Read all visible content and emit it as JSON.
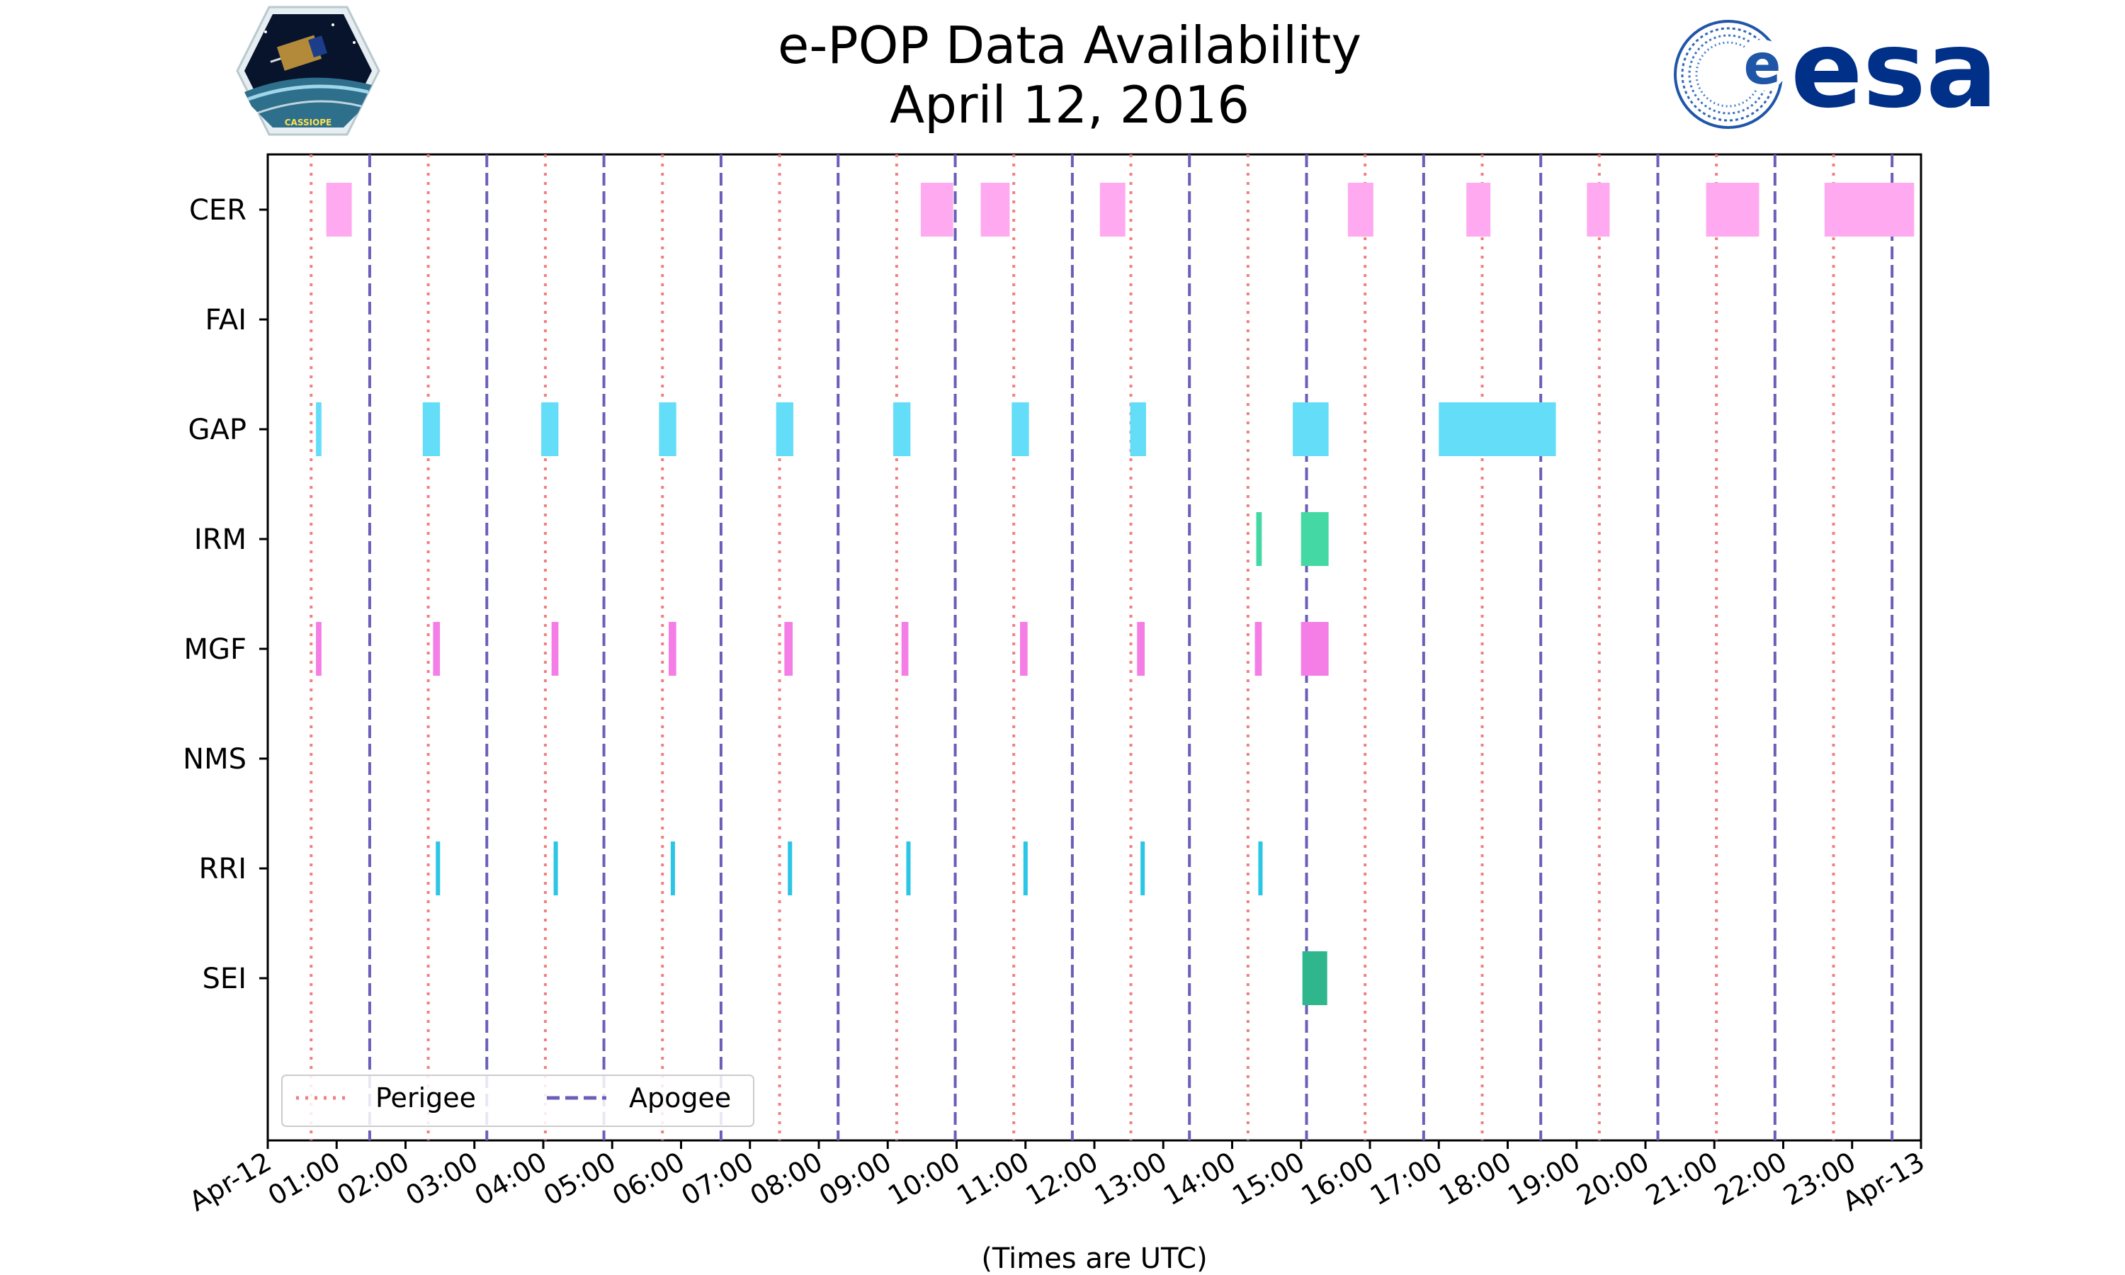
{
  "chart_data": {
    "type": "timeline",
    "title": "e-POP Data Availability",
    "subtitle": "April 12, 2016",
    "xlabel": "(Times are UTC)",
    "ylabel": "",
    "xlim_hours": [
      0,
      24
    ],
    "x_tick_labels": [
      "Apr-12",
      "01:00",
      "02:00",
      "03:00",
      "04:00",
      "05:00",
      "06:00",
      "07:00",
      "08:00",
      "09:00",
      "10:00",
      "11:00",
      "12:00",
      "13:00",
      "14:00",
      "15:00",
      "16:00",
      "17:00",
      "18:00",
      "19:00",
      "20:00",
      "21:00",
      "22:00",
      "23:00",
      "Apr-13"
    ],
    "instruments": [
      "CER",
      "FAI",
      "GAP",
      "IRM",
      "MGF",
      "NMS",
      "RRI",
      "SEI"
    ],
    "instrument_colors": {
      "CER": "#ffaaf0",
      "FAI": "#cccccc",
      "GAP": "#64ddf8",
      "IRM": "#44d8a4",
      "MGF": "#f57ee6",
      "NMS": "#cccccc",
      "RRI": "#2bc5e5",
      "SEI": "#2fb68c"
    },
    "intervals": {
      "CER": [
        [
          0.85,
          1.22
        ],
        [
          9.48,
          9.95
        ],
        [
          10.35,
          10.77
        ],
        [
          12.08,
          12.45
        ],
        [
          15.68,
          16.05
        ],
        [
          17.4,
          17.75
        ],
        [
          19.15,
          19.48
        ],
        [
          20.88,
          21.65
        ],
        [
          22.6,
          23.9
        ]
      ],
      "FAI": [],
      "GAP": [
        [
          0.7,
          0.78
        ],
        [
          2.25,
          2.5
        ],
        [
          3.97,
          4.22
        ],
        [
          5.68,
          5.93
        ],
        [
          7.38,
          7.63
        ],
        [
          9.08,
          9.33
        ],
        [
          10.8,
          11.05
        ],
        [
          12.52,
          12.75
        ],
        [
          14.88,
          15.4
        ],
        [
          17.0,
          18.7
        ]
      ],
      "IRM": [
        [
          14.35,
          14.43
        ],
        [
          15.0,
          15.4
        ]
      ],
      "MGF": [
        [
          0.7,
          0.78
        ],
        [
          2.4,
          2.5
        ],
        [
          4.12,
          4.22
        ],
        [
          5.82,
          5.93
        ],
        [
          7.5,
          7.62
        ],
        [
          9.2,
          9.3
        ],
        [
          10.92,
          11.03
        ],
        [
          12.62,
          12.73
        ],
        [
          14.33,
          14.43
        ],
        [
          15.0,
          15.4
        ]
      ],
      "NMS": [],
      "RRI": [
        [
          2.44,
          2.5
        ],
        [
          4.15,
          4.21
        ],
        [
          5.85,
          5.91
        ],
        [
          7.55,
          7.61
        ],
        [
          9.27,
          9.33
        ],
        [
          10.97,
          11.03
        ],
        [
          12.67,
          12.73
        ],
        [
          14.38,
          14.44
        ]
      ],
      "SEI": [
        [
          15.02,
          15.38
        ]
      ]
    },
    "perigee_hours": [
      0.63,
      2.33,
      4.03,
      5.73,
      7.43,
      9.13,
      10.83,
      12.53,
      14.23,
      15.93,
      17.63,
      19.33,
      21.03,
      22.73
    ],
    "apogee_hours": [
      1.48,
      3.18,
      4.88,
      6.58,
      8.28,
      9.98,
      11.68,
      13.38,
      15.08,
      16.78,
      18.48,
      20.18,
      21.88,
      23.58
    ],
    "perigee_color": "#f08080",
    "apogee_color": "#6a5fb8",
    "legend": {
      "location": "lower-left",
      "entries": [
        "Perigee",
        "Apogee"
      ]
    }
  },
  "logos": {
    "mission": {
      "text": "CASSIOPE"
    },
    "agency": {
      "text": "esa"
    }
  }
}
